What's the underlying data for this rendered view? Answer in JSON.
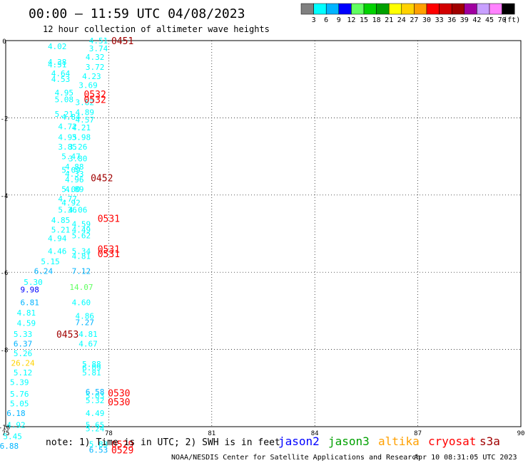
{
  "header": {
    "title": "00:00 – 11:59 UTC 04/08/2023",
    "subtitle": "12 hour collection of altimeter wave heights"
  },
  "colorbar": {
    "unit": "(ft)",
    "colors": [
      "#808080",
      "#00ffff",
      "#00b4ff",
      "#0000ff",
      "#60ff60",
      "#00d200",
      "#00a000",
      "#ffff00",
      "#ffd200",
      "#ffa000",
      "#ff0000",
      "#d20000",
      "#a00000",
      "#a000a0",
      "#c8a0ff",
      "#ff82ff",
      "#000000"
    ],
    "labels": [
      "3",
      "6",
      "9",
      "12",
      "15",
      "18",
      "21",
      "24",
      "27",
      "30",
      "33",
      "36",
      "39",
      "42",
      "45",
      "70"
    ]
  },
  "footer": {
    "note": "note: 1) Time is in UTC; 2) SWH is in feet",
    "credit": "NOAA/NESDIS Center for Satellite Applications and Research",
    "timestamp": "Apr 10 08:31:05 UTC 2023",
    "legend": [
      {
        "name": "jason2",
        "color": "#0000ff"
      },
      {
        "name": "jason3",
        "color": "#00a000"
      },
      {
        "name": "altika",
        "color": "#ffa000"
      },
      {
        "name": "cryosat",
        "color": "#ff0000"
      },
      {
        "name": "s3a",
        "color": "#a00000"
      }
    ]
  },
  "chart_data": {
    "type": "scatter",
    "xlim": [
      75,
      90
    ],
    "ylim": [
      -10,
      0
    ],
    "x_ticks": [
      "75",
      "78",
      "81",
      "84",
      "87",
      "90"
    ],
    "y_ticks": [
      "0",
      "-2",
      "-4",
      "-6",
      "-8",
      "-10"
    ],
    "grid": true,
    "points": [
      {
        "label": "4.51",
        "x": 77.7,
        "y": 0.0,
        "color": "#00ffff"
      },
      {
        "label": "3.74",
        "x": 77.7,
        "y": -0.2,
        "color": "#00ffff"
      },
      {
        "label": "4.02",
        "x": 76.5,
        "y": -0.15,
        "color": "#00ffff"
      },
      {
        "label": "4.32",
        "x": 77.6,
        "y": -0.42,
        "color": "#00ffff"
      },
      {
        "label": "4.38",
        "x": 76.5,
        "y": -0.55,
        "color": "#00ffff"
      },
      {
        "label": "4.51",
        "x": 76.5,
        "y": -0.62,
        "color": "#00ffff"
      },
      {
        "label": "3.72",
        "x": 77.6,
        "y": -0.68,
        "color": "#00ffff"
      },
      {
        "label": "4.64",
        "x": 76.6,
        "y": -0.85,
        "color": "#00ffff"
      },
      {
        "label": "4.23",
        "x": 77.5,
        "y": -0.92,
        "color": "#00ffff"
      },
      {
        "label": "4.53",
        "x": 76.6,
        "y": -1.0,
        "color": "#00ffff"
      },
      {
        "label": "3.69",
        "x": 77.4,
        "y": -1.15,
        "color": "#00ffff"
      },
      {
        "label": "4.95",
        "x": 76.7,
        "y": -1.35,
        "color": "#00ffff"
      },
      {
        "label": "5.08",
        "x": 76.7,
        "y": -1.52,
        "color": "#00ffff"
      },
      {
        "label": "3.82",
        "x": 77.3,
        "y": -1.6,
        "color": "#00ffff"
      },
      {
        "label": "4.89",
        "x": 77.3,
        "y": -1.85,
        "color": "#00ffff"
      },
      {
        "label": "5.21",
        "x": 76.7,
        "y": -1.9,
        "color": "#00ffff"
      },
      {
        "label": "4.84",
        "x": 76.9,
        "y": -1.97,
        "color": "#00ffff"
      },
      {
        "label": "4.57",
        "x": 77.3,
        "y": -2.05,
        "color": "#00ffff"
      },
      {
        "label": "4.72",
        "x": 76.8,
        "y": -2.22,
        "color": "#00ffff"
      },
      {
        "label": "4.21",
        "x": 77.2,
        "y": -2.25,
        "color": "#00ffff"
      },
      {
        "label": "4.95",
        "x": 76.8,
        "y": -2.5,
        "color": "#00ffff"
      },
      {
        "label": "3.98",
        "x": 77.2,
        "y": -2.5,
        "color": "#00ffff"
      },
      {
        "label": "3.85",
        "x": 76.8,
        "y": -2.75,
        "color": "#00ffff"
      },
      {
        "label": "3.26",
        "x": 77.1,
        "y": -2.75,
        "color": "#00ffff"
      },
      {
        "label": "5.47",
        "x": 76.9,
        "y": -3.0,
        "color": "#00ffff"
      },
      {
        "label": "3.80",
        "x": 77.1,
        "y": -3.05,
        "color": "#00ffff"
      },
      {
        "label": "4.88",
        "x": 77.0,
        "y": -3.27,
        "color": "#00ffff"
      },
      {
        "label": "5.09",
        "x": 76.9,
        "y": -3.35,
        "color": "#00ffff"
      },
      {
        "label": "4.33",
        "x": 77.0,
        "y": -3.45,
        "color": "#00ffff"
      },
      {
        "label": "4.96",
        "x": 77.0,
        "y": -3.6,
        "color": "#00ffff"
      },
      {
        "label": "5.00",
        "x": 76.9,
        "y": -3.85,
        "color": "#00ffff"
      },
      {
        "label": "4.89",
        "x": 77.0,
        "y": -3.85,
        "color": "#00ffff"
      },
      {
        "label": "4.77",
        "x": 76.8,
        "y": -4.1,
        "color": "#00ffff"
      },
      {
        "label": "4.92",
        "x": 76.9,
        "y": -4.2,
        "color": "#00ffff"
      },
      {
        "label": "5.36",
        "x": 76.8,
        "y": -4.38,
        "color": "#00ffff"
      },
      {
        "label": "4.06",
        "x": 77.1,
        "y": -4.38,
        "color": "#00ffff"
      },
      {
        "label": "4.85",
        "x": 76.6,
        "y": -4.65,
        "color": "#00ffff"
      },
      {
        "label": "4.59",
        "x": 77.2,
        "y": -4.75,
        "color": "#00ffff"
      },
      {
        "label": "5.21",
        "x": 76.6,
        "y": -4.9,
        "color": "#00ffff"
      },
      {
        "label": "4.49",
        "x": 77.2,
        "y": -4.9,
        "color": "#00ffff"
      },
      {
        "label": "5.62",
        "x": 77.2,
        "y": -5.05,
        "color": "#00ffff"
      },
      {
        "label": "4.94",
        "x": 76.5,
        "y": -5.12,
        "color": "#00ffff"
      },
      {
        "label": "4.46",
        "x": 76.5,
        "y": -5.45,
        "color": "#00ffff"
      },
      {
        "label": "5.34",
        "x": 77.2,
        "y": -5.45,
        "color": "#00ffff"
      },
      {
        "label": "4.81",
        "x": 77.2,
        "y": -5.58,
        "color": "#00ffff"
      },
      {
        "label": "5.15",
        "x": 76.3,
        "y": -5.72,
        "color": "#00ffff"
      },
      {
        "label": "6.24",
        "x": 76.1,
        "y": -5.97,
        "color": "#00b4ff"
      },
      {
        "label": "7.12",
        "x": 77.2,
        "y": -5.97,
        "color": "#00b4ff"
      },
      {
        "label": "5.30",
        "x": 75.8,
        "y": -6.25,
        "color": "#00ffff"
      },
      {
        "label": "14.07",
        "x": 77.2,
        "y": -6.38,
        "color": "#60ff60"
      },
      {
        "label": "9.98",
        "x": 75.7,
        "y": -6.45,
        "color": "#0000ff"
      },
      {
        "label": "6.81",
        "x": 75.7,
        "y": -6.78,
        "color": "#00b4ff"
      },
      {
        "label": "4.60",
        "x": 77.2,
        "y": -6.78,
        "color": "#00ffff"
      },
      {
        "label": "4.81",
        "x": 75.6,
        "y": -7.05,
        "color": "#00ffff"
      },
      {
        "label": "4.86",
        "x": 77.3,
        "y": -7.13,
        "color": "#00ffff"
      },
      {
        "label": "7.27",
        "x": 77.3,
        "y": -7.3,
        "color": "#00b4ff"
      },
      {
        "label": "4.59",
        "x": 75.6,
        "y": -7.32,
        "color": "#00ffff"
      },
      {
        "label": "5.33",
        "x": 75.5,
        "y": -7.6,
        "color": "#00ffff"
      },
      {
        "label": "4.81",
        "x": 77.4,
        "y": -7.6,
        "color": "#00ffff"
      },
      {
        "label": "6.37",
        "x": 75.5,
        "y": -7.85,
        "color": "#00b4ff"
      },
      {
        "label": "4.67",
        "x": 77.4,
        "y": -7.85,
        "color": "#00ffff"
      },
      {
        "label": "5.26",
        "x": 75.5,
        "y": -8.1,
        "color": "#00ffff"
      },
      {
        "label": "26.24",
        "x": 75.5,
        "y": -8.35,
        "color": "#ffd200"
      },
      {
        "label": "5.88",
        "x": 77.5,
        "y": -8.38,
        "color": "#00ffff"
      },
      {
        "label": "6.09",
        "x": 77.5,
        "y": -8.47,
        "color": "#00ffff"
      },
      {
        "label": "5.12",
        "x": 75.5,
        "y": -8.6,
        "color": "#00ffff"
      },
      {
        "label": "5.81",
        "x": 77.5,
        "y": -8.6,
        "color": "#00ffff"
      },
      {
        "label": "5.39",
        "x": 75.4,
        "y": -8.85,
        "color": "#00ffff"
      },
      {
        "label": "5.76",
        "x": 75.4,
        "y": -9.15,
        "color": "#00ffff"
      },
      {
        "label": "6.58",
        "x": 77.6,
        "y": -9.1,
        "color": "#00b4ff"
      },
      {
        "label": "5.03",
        "x": 77.6,
        "y": -9.2,
        "color": "#00ffff"
      },
      {
        "label": "5.32",
        "x": 77.6,
        "y": -9.32,
        "color": "#00ffff"
      },
      {
        "label": "5.05",
        "x": 75.4,
        "y": -9.4,
        "color": "#00ffff"
      },
      {
        "label": "6.18",
        "x": 75.3,
        "y": -9.65,
        "color": "#00b4ff"
      },
      {
        "label": "4.49",
        "x": 77.6,
        "y": -9.65,
        "color": "#00ffff"
      },
      {
        "label": "4.92",
        "x": 75.3,
        "y": -9.95,
        "color": "#00ffff"
      },
      {
        "label": "5.65",
        "x": 77.6,
        "y": -9.95,
        "color": "#00ffff"
      },
      {
        "label": "5.24",
        "x": 77.6,
        "y": -10.05,
        "color": "#00ffff"
      },
      {
        "label": "5.45",
        "x": 75.2,
        "y": -10.25,
        "color": "#00ffff"
      },
      {
        "label": "5.83",
        "x": 77.7,
        "y": -10.45,
        "color": "#00ffff"
      },
      {
        "label": "6.88",
        "x": 75.1,
        "y": -10.5,
        "color": "#00b4ff"
      },
      {
        "label": "6.53",
        "x": 77.7,
        "y": -10.6,
        "color": "#00b4ff"
      }
    ],
    "time_labels": [
      {
        "label": "0451",
        "x": 78.4,
        "y": 0.0,
        "color": "#a00000"
      },
      {
        "label": "0532",
        "x": 77.6,
        "y": -1.38,
        "color": "#ff0000"
      },
      {
        "label": "0532",
        "x": 77.6,
        "y": -1.52,
        "color": "#ff0000"
      },
      {
        "label": "0452",
        "x": 77.8,
        "y": -3.55,
        "color": "#a00000"
      },
      {
        "label": "0531",
        "x": 78.0,
        "y": -4.6,
        "color": "#ff0000"
      },
      {
        "label": "0531",
        "x": 78.0,
        "y": -5.4,
        "color": "#ff0000"
      },
      {
        "label": "0531",
        "x": 78.0,
        "y": -5.52,
        "color": "#ff0000"
      },
      {
        "label": "0453",
        "x": 76.8,
        "y": -7.6,
        "color": "#a00000"
      },
      {
        "label": "0530",
        "x": 78.3,
        "y": -9.12,
        "color": "#ff0000"
      },
      {
        "label": "0530",
        "x": 78.3,
        "y": -9.35,
        "color": "#ff0000"
      },
      {
        "label": "0529",
        "x": 78.4,
        "y": -10.45,
        "color": "#ff0000"
      },
      {
        "label": "0529",
        "x": 78.4,
        "y": -10.6,
        "color": "#ff0000"
      }
    ]
  }
}
